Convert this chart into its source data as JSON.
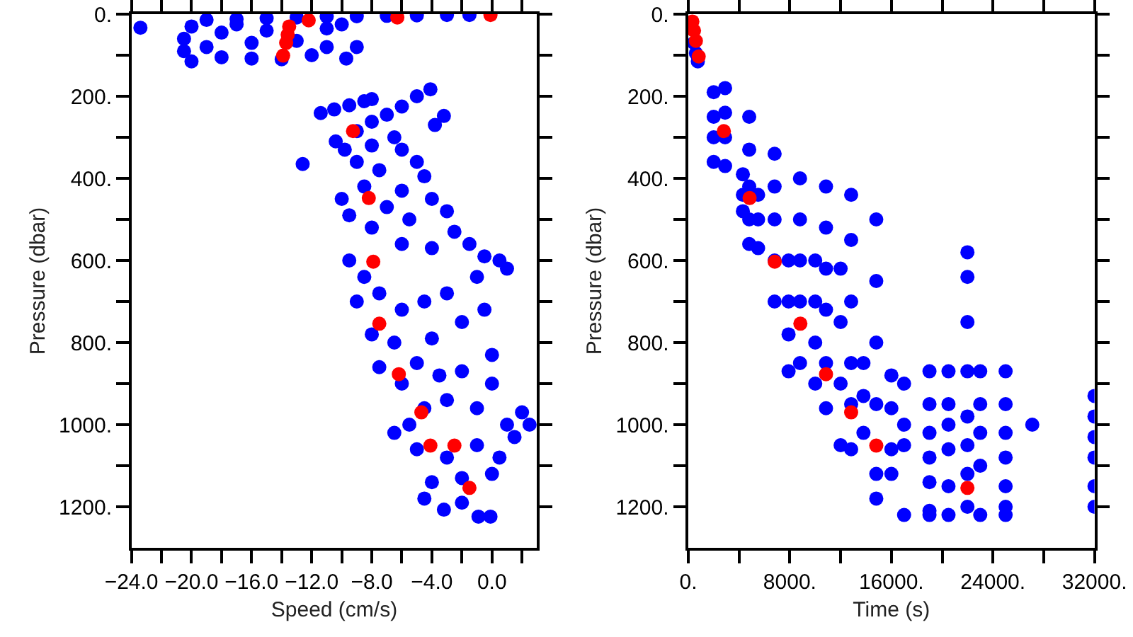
{
  "chart_data": [
    {
      "type": "scatter",
      "xlabel": "Speed (cm/s)",
      "ylabel": "Pressure (dbar)",
      "marker": "circle",
      "xlim": [
        -24,
        3
      ],
      "ylim": [
        1300,
        0
      ],
      "xticks": [
        {
          "value": -24,
          "label": "−24.0"
        },
        {
          "value": -22,
          "label": null
        },
        {
          "value": -20,
          "label": "−20.0"
        },
        {
          "value": -18,
          "label": null
        },
        {
          "value": -16,
          "label": "−16.0"
        },
        {
          "value": -14,
          "label": null
        },
        {
          "value": -12,
          "label": "−12.0"
        },
        {
          "value": -10,
          "label": null
        },
        {
          "value": -8,
          "label": "−8.0"
        },
        {
          "value": -6,
          "label": null
        },
        {
          "value": -4,
          "label": "−4.0"
        },
        {
          "value": -2,
          "label": null
        },
        {
          "value": 0,
          "label": "0.0"
        },
        {
          "value": 2,
          "label": null
        }
      ],
      "yticks": [
        {
          "value": 0,
          "label": "0."
        },
        {
          "value": 100,
          "label": null
        },
        {
          "value": 200,
          "label": "200."
        },
        {
          "value": 300,
          "label": null
        },
        {
          "value": 400,
          "label": "400."
        },
        {
          "value": 500,
          "label": null
        },
        {
          "value": 600,
          "label": "600."
        },
        {
          "value": 700,
          "label": null
        },
        {
          "value": 800,
          "label": "800."
        },
        {
          "value": 900,
          "label": null
        },
        {
          "value": 1000,
          "label": "1000."
        },
        {
          "value": 1100,
          "label": null
        },
        {
          "value": 1200,
          "label": "1200."
        }
      ],
      "series": [
        {
          "color": "#0000ff",
          "x": [
            -19,
            -17,
            -15,
            -13,
            -11,
            -9,
            -7,
            -5,
            -3,
            -1.5,
            -23.4,
            -20,
            -20.5,
            -20.5,
            -20,
            -19,
            -18,
            -18,
            -17,
            -16,
            -16,
            -15,
            -14,
            -13,
            -12,
            -11,
            -11,
            -9.7,
            -9,
            -10,
            -11.4,
            -10.5,
            -9.5,
            -8.5,
            -8,
            -10.4,
            -9,
            -8,
            -7,
            -6,
            -5,
            -4.1,
            -3.2,
            -3.8,
            -12.6,
            -9.8,
            -9,
            -8,
            -7.5,
            -6,
            -5,
            -4.5,
            -6.5,
            -10,
            -9.5,
            -8.5,
            -8,
            -7,
            -6,
            -5.5,
            -4,
            -3,
            -2.5,
            -1.5,
            -0.5,
            0.5,
            1,
            -1,
            -4,
            -6,
            -9.5,
            -8.5,
            -9,
            -7.5,
            -6,
            -4.5,
            -3,
            -2,
            -0.5,
            0,
            -8,
            -6.5,
            -4,
            -7.5,
            -6,
            -5,
            -3.5,
            -2,
            0,
            2,
            2.5,
            1,
            -1,
            -3,
            -5.5,
            -6.5,
            -4.5,
            -5,
            -3,
            -1,
            0.5,
            1.5,
            -4,
            -2,
            0,
            -4.5,
            -3.2,
            -0.9,
            -0.1,
            -2
          ],
          "values": [
            14,
            12,
            10,
            8,
            6,
            5,
            4,
            3,
            2,
            2,
            33,
            30,
            60,
            90,
            115,
            80,
            45,
            105,
            25,
            70,
            108,
            40,
            110,
            65,
            100,
            35,
            80,
            108,
            80,
            25,
            241,
            232,
            222,
            212,
            207,
            310,
            285,
            262,
            245,
            225,
            200,
            183,
            248,
            270,
            365,
            330,
            360,
            320,
            380,
            330,
            360,
            395,
            300,
            450,
            490,
            420,
            520,
            470,
            430,
            500,
            450,
            480,
            530,
            560,
            590,
            600,
            620,
            640,
            570,
            560,
            600,
            640,
            700,
            680,
            720,
            700,
            680,
            750,
            720,
            830,
            780,
            800,
            790,
            860,
            900,
            850,
            880,
            870,
            900,
            970,
            1000,
            1000,
            960,
            940,
            1000,
            1020,
            960,
            1060,
            1080,
            1050,
            1080,
            1030,
            1140,
            1130,
            1120,
            1180,
            1207,
            1224,
            1224,
            1190
          ]
        },
        {
          "color": "#ff0000",
          "x": [
            -0.1,
            -6.3,
            -12.2,
            -13.5,
            -13.6,
            -13.7,
            -13.9,
            -9.25,
            -8.2,
            -7.9,
            -7.5,
            -6.2,
            -4.7,
            -4.1,
            -2.5,
            -1.5
          ],
          "values": [
            2,
            8,
            15,
            30,
            50,
            70,
            101,
            285,
            448,
            603,
            754,
            877,
            970,
            1051,
            1051,
            1154
          ]
        }
      ]
    },
    {
      "type": "scatter",
      "xlabel": "Time (s)",
      "ylabel": "Pressure (dbar)",
      "marker": "circle",
      "xlim": [
        0,
        32000
      ],
      "ylim": [
        1300,
        0
      ],
      "xticks": [
        {
          "value": 0,
          "label": "0."
        },
        {
          "value": 4000,
          "label": null
        },
        {
          "value": 8000,
          "label": "8000."
        },
        {
          "value": 12000,
          "label": null
        },
        {
          "value": 16000,
          "label": "16000."
        },
        {
          "value": 20000,
          "label": null
        },
        {
          "value": 24000,
          "label": "24000."
        },
        {
          "value": 28000,
          "label": null
        },
        {
          "value": 32000,
          "label": "32000."
        }
      ],
      "yticks": [
        {
          "value": 0,
          "label": "0."
        },
        {
          "value": 100,
          "label": null
        },
        {
          "value": 200,
          "label": "200."
        },
        {
          "value": 300,
          "label": null
        },
        {
          "value": 400,
          "label": "400."
        },
        {
          "value": 500,
          "label": null
        },
        {
          "value": 600,
          "label": "600."
        },
        {
          "value": 700,
          "label": null
        },
        {
          "value": 800,
          "label": "800."
        },
        {
          "value": 900,
          "label": null
        },
        {
          "value": 1000,
          "label": "1000."
        },
        {
          "value": 1100,
          "label": null
        },
        {
          "value": 1200,
          "label": "1200."
        }
      ],
      "series": [
        {
          "color": "#0000ff",
          "x": [
            450,
            600,
            750,
            2000,
            2000,
            2000,
            2000,
            2900,
            2900,
            2900,
            2900,
            4300,
            4300,
            4300,
            4800,
            4800,
            4800,
            4800,
            4800,
            5500,
            5500,
            5500,
            6800,
            6800,
            6800,
            6800,
            6800,
            7900,
            7900,
            7900,
            7900,
            8800,
            8800,
            8800,
            8800,
            8800,
            10000,
            10000,
            10000,
            10000,
            10850,
            10850,
            10850,
            10850,
            10850,
            10850,
            12000,
            12000,
            12000,
            12000,
            12830,
            12830,
            12830,
            12830,
            12830,
            12830,
            13800,
            13800,
            13800,
            14810,
            14810,
            14810,
            14810,
            14810,
            14810,
            16000,
            16000,
            16000,
            16000,
            17000,
            17000,
            17000,
            17000,
            19000,
            19000,
            19000,
            19000,
            19000,
            19000,
            19000,
            20500,
            20500,
            20500,
            20500,
            20500,
            20500,
            21990,
            21990,
            21990,
            21990,
            21990,
            21990,
            21990,
            21990,
            23000,
            23000,
            23000,
            23000,
            23000,
            25000,
            25000,
            25000,
            25000,
            25000,
            25000,
            25000,
            27100,
            32000,
            32000,
            32000,
            32000,
            32000,
            32000
          ],
          "values": [
            70,
            95,
            115,
            190,
            250,
            300,
            360,
            180,
            240,
            300,
            370,
            390,
            440,
            480,
            250,
            330,
            420,
            500,
            560,
            440,
            500,
            570,
            340,
            420,
            500,
            600,
            700,
            600,
            700,
            780,
            870,
            400,
            500,
            600,
            700,
            850,
            600,
            700,
            800,
            900,
            420,
            520,
            620,
            720,
            850,
            960,
            620,
            750,
            900,
            1050,
            440,
            550,
            700,
            850,
            950,
            1060,
            850,
            930,
            1020,
            500,
            650,
            800,
            950,
            1120,
            1180,
            880,
            960,
            1060,
            1120,
            900,
            1000,
            1050,
            1220,
            870,
            950,
            1020,
            1080,
            1140,
            1210,
            1220,
            870,
            950,
            1000,
            1060,
            1150,
            1220,
            580,
            640,
            750,
            870,
            980,
            1050,
            1120,
            1200,
            870,
            950,
            1020,
            1100,
            1220,
            870,
            950,
            1020,
            1080,
            1150,
            1200,
            1220,
            1000,
            930,
            980,
            1030,
            1080,
            1150,
            1200
          ]
        },
        {
          "color": "#ff0000",
          "x": [
            320,
            450,
            600,
            820,
            2800,
            4830,
            6810,
            8830,
            10850,
            12830,
            14810,
            21990
          ],
          "values": [
            18,
            40,
            65,
            103,
            285,
            448,
            603,
            754,
            877,
            970,
            1051,
            1154
          ]
        }
      ]
    }
  ]
}
